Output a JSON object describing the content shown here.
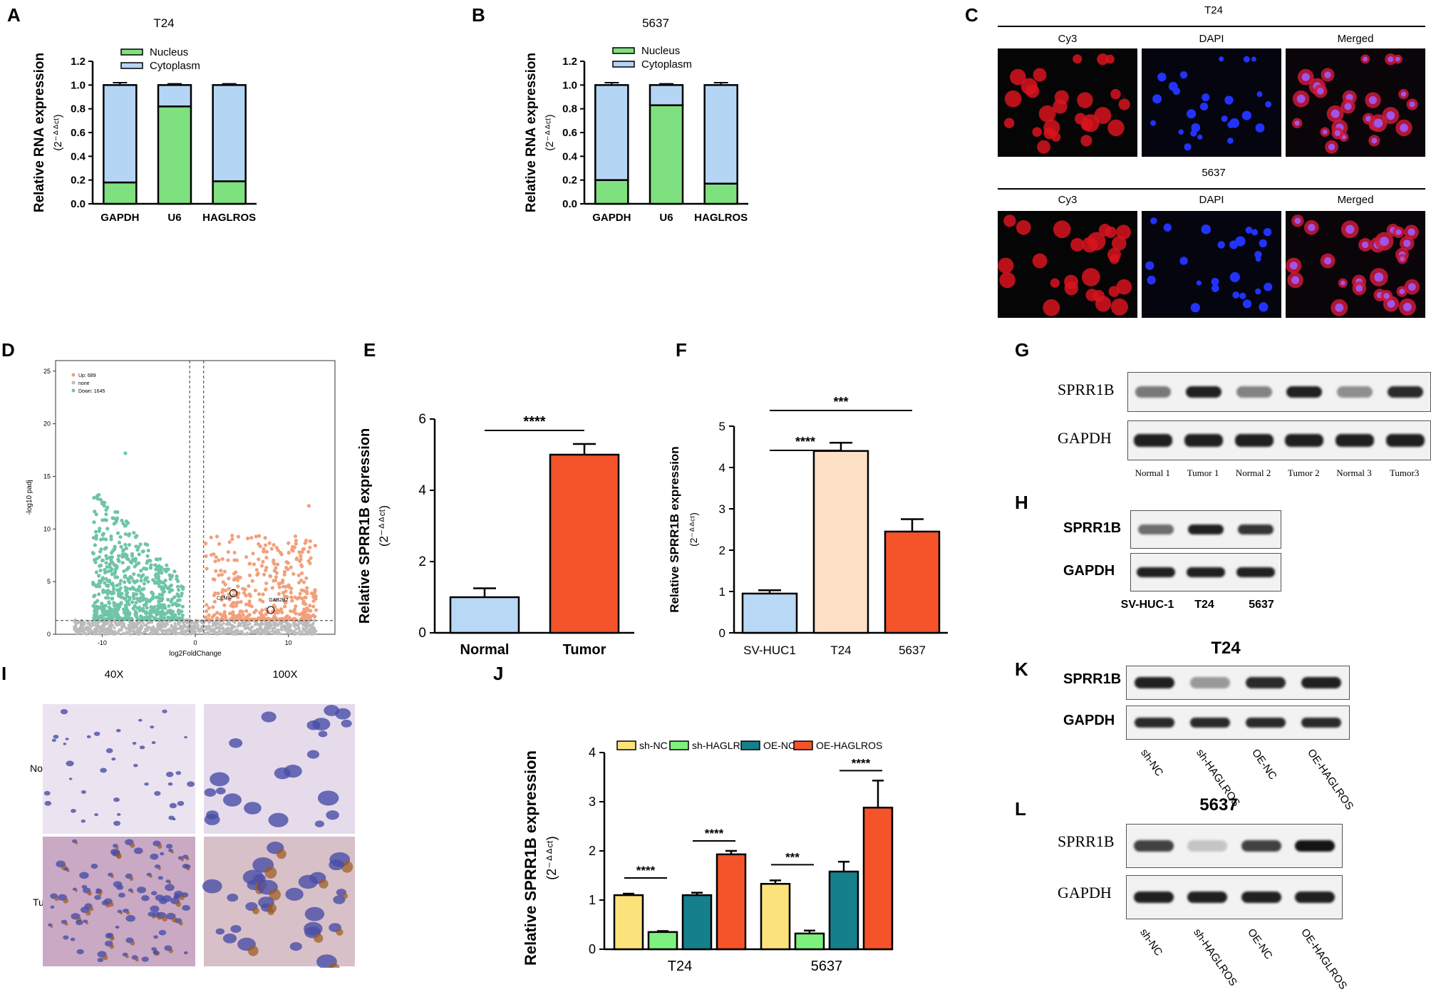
{
  "panels": {
    "A": "A",
    "B": "B",
    "C": "C",
    "D": "D",
    "E": "E",
    "F": "F",
    "G": "G",
    "H": "H",
    "I": "I",
    "J": "J",
    "K": "K",
    "L": "L"
  },
  "colors": {
    "nucleus": "#7ee07e",
    "cytoplasm": "#b5d5f5",
    "normal_blue": "#b8d8f5",
    "tumor_red": "#f5532a",
    "t24_peach": "#fde0c5",
    "sh_nc": "#fbe27a",
    "sh_haglros": "#7ef07e",
    "oe_nc": "#157f8c",
    "oe_haglros": "#f5532a",
    "volcano_up": "#f2a07b",
    "volcano_down": "#6fc4a9",
    "volcano_none": "#bbbbbb"
  },
  "chart_data": [
    {
      "panel": "A",
      "type": "bar",
      "title": "T24",
      "categories": [
        "GAPDH",
        "U6",
        "HAGLROS"
      ],
      "series": [
        {
          "name": "Nucleus",
          "values": [
            0.18,
            0.82,
            0.19
          ],
          "errors": [
            0.03,
            0.01,
            0.005
          ]
        },
        {
          "name": "Cytoplasm",
          "values": [
            0.82,
            0.18,
            0.81
          ],
          "errors": [
            0.02,
            0.01,
            0.01
          ]
        }
      ],
      "stacked": true,
      "ylabel": "Relative RNA expression",
      "ylabel2": "(2⁻ᐞᐞᶜᵗ)",
      "yticks": [
        "0.0",
        "0.2",
        "0.4",
        "0.6",
        "0.8",
        "1.0",
        "1.2"
      ],
      "ylim": [
        0,
        1.2
      ]
    },
    {
      "panel": "B",
      "type": "bar",
      "title": "5637",
      "categories": [
        "GAPDH",
        "U6",
        "HAGLROS"
      ],
      "series": [
        {
          "name": "Nucleus",
          "values": [
            0.2,
            0.83,
            0.17
          ],
          "errors": [
            0.02,
            0.01,
            0.02
          ]
        },
        {
          "name": "Cytoplasm",
          "values": [
            0.8,
            0.17,
            0.83
          ],
          "errors": [
            0.02,
            0.01,
            0.02
          ]
        }
      ],
      "stacked": true,
      "ylabel": "Relative RNA expression",
      "ylabel2": "(2⁻ᐞᐞᶜᵗ)",
      "yticks": [
        "0.0",
        "0.2",
        "0.4",
        "0.6",
        "0.8",
        "1.0",
        "1.2"
      ],
      "ylim": [
        0,
        1.2
      ]
    },
    {
      "panel": "D",
      "type": "scatter",
      "title": "",
      "xlabel": "log2FoldChange",
      "ylabel": "-log10 padj",
      "xticks": [
        "-10",
        "0",
        "10"
      ],
      "yticks": [
        "0",
        "5",
        "10",
        "15",
        "20",
        "25"
      ],
      "xlim": [
        -15,
        15
      ],
      "ylim": [
        0,
        26
      ],
      "legend": [
        "Up: 689",
        "none",
        "Down: 1645"
      ],
      "annotations": [
        "CEMIP",
        "GAB2B2"
      ]
    },
    {
      "panel": "E",
      "type": "bar",
      "title": "",
      "categories": [
        "Normal",
        "Tumor"
      ],
      "values": [
        1.0,
        5.0
      ],
      "errors": [
        0.25,
        0.3
      ],
      "ylabel": "Relative SPRR1B expression",
      "ylabel2": "(2⁻ᐞᐞᶜᵗ)",
      "yticks": [
        "0",
        "2",
        "4",
        "6"
      ],
      "ylim": [
        0,
        6
      ],
      "significance": [
        "****"
      ]
    },
    {
      "panel": "F",
      "type": "bar",
      "title": "",
      "categories": [
        "SV-HUC1",
        "T24",
        "5637"
      ],
      "values": [
        0.95,
        4.4,
        2.45
      ],
      "errors": [
        0.08,
        0.2,
        0.3
      ],
      "ylabel": "Relative SPRR1B expression",
      "ylabel2": "(2⁻ᐞᐞᶜᵗ)",
      "yticks": [
        "0",
        "1",
        "2",
        "3",
        "4",
        "5"
      ],
      "ylim": [
        0,
        5
      ],
      "significance": [
        "***",
        "****"
      ]
    },
    {
      "panel": "J",
      "type": "bar",
      "title": "",
      "categories": [
        "T24",
        "5637"
      ],
      "series": [
        {
          "name": "sh-NC",
          "values": [
            1.1,
            1.33
          ],
          "errors": [
            0.03,
            0.07
          ]
        },
        {
          "name": "sh-HAGLROS",
          "values": [
            0.35,
            0.32
          ],
          "errors": [
            0.02,
            0.06
          ]
        },
        {
          "name": "OE-NC",
          "values": [
            1.1,
            1.58
          ],
          "errors": [
            0.05,
            0.2
          ]
        },
        {
          "name": "OE-HAGLROS",
          "values": [
            1.93,
            2.88
          ],
          "errors": [
            0.07,
            0.55
          ]
        }
      ],
      "ylabel": "Relative SPRR1B expression",
      "ylabel2": "(2⁻ᐞᐞᶜᵗ)",
      "yticks": [
        "0",
        "1",
        "2",
        "3",
        "4"
      ],
      "ylim": [
        0,
        4
      ],
      "significance": [
        "****",
        "****",
        "***",
        "****"
      ]
    }
  ],
  "panelC": {
    "row1_title": "T24",
    "row2_title": "5637",
    "cols": [
      "Cy3",
      "DAPI",
      "Merged"
    ]
  },
  "panelG": {
    "rows": [
      "SPRR1B",
      "GAPDH"
    ],
    "lanes": [
      "Normal 1",
      "Tumor 1",
      "Normal 2",
      "Tumor 2",
      "Normal 3",
      "Tumor3"
    ]
  },
  "panelH": {
    "rows": [
      "SPRR1B",
      "GAPDH"
    ],
    "lanes": [
      "SV-HUC-1",
      "T24",
      "5637"
    ]
  },
  "panelI": {
    "cols": [
      "40X",
      "100X"
    ],
    "rows": [
      "Normal",
      "Tumor"
    ]
  },
  "panelK": {
    "title": "T24",
    "rows": [
      "SPRR1B",
      "GAPDH"
    ],
    "lanes": [
      "sh-NC",
      "sh-HAGLROS",
      "OE-NC",
      "OE-HAGLROS"
    ]
  },
  "panelL": {
    "title": "5637",
    "rows": [
      "SPRR1B",
      "GAPDH"
    ],
    "lanes": [
      "sh-NC",
      "sh-HAGLROS",
      "OE-NC",
      "OE-HAGLROS"
    ]
  }
}
